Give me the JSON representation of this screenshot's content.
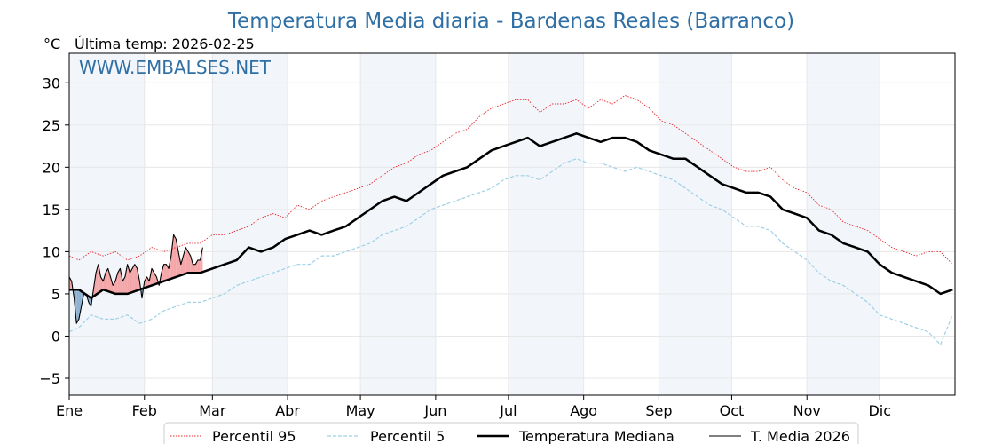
{
  "page": {
    "title": "Temperatura Media diaria - Bardenas Reales (Barranco)",
    "unit": "°C",
    "last_temp": "Última temp: 2026-02-25",
    "watermark": "WWW.EMBALSES.NET"
  },
  "colors": {
    "p95": "#e8262a",
    "p5": "#9ed0e6",
    "median": "#000000",
    "current": "#000000",
    "warm_fill": "#f4a6a8",
    "cold_fill": "#8db2d1",
    "band": "#f2f6fb",
    "grid": "#e7e7e7"
  },
  "chart_data": {
    "type": "line",
    "title": "Temperatura Media diaria - Bardenas Reales (Barranco)",
    "ylabel": "°C",
    "xlim": [
      1,
      366
    ],
    "ylim": [
      -7,
      33.5
    ],
    "yticks": [
      -5,
      0,
      5,
      10,
      15,
      20,
      25,
      30
    ],
    "ytick_labels": [
      "−5",
      "0",
      "5",
      "10",
      "15",
      "20",
      "25",
      "30"
    ],
    "month_labels": [
      "Ene",
      "Feb",
      "Mar",
      "Abr",
      "May",
      "Jun",
      "Jul",
      "Ago",
      "Sep",
      "Oct",
      "Nov",
      "Dic"
    ],
    "month_starts": [
      1,
      32,
      60,
      91,
      121,
      152,
      182,
      213,
      244,
      274,
      305,
      335
    ],
    "grid": true,
    "legend_position": "bottom",
    "series": [
      {
        "name": "Percentil 95",
        "style": "dotted-red-thin",
        "x": [
          1,
          5,
          10,
          15,
          20,
          25,
          30,
          35,
          40,
          45,
          50,
          55,
          60,
          65,
          70,
          75,
          80,
          85,
          90,
          95,
          100,
          105,
          110,
          115,
          120,
          125,
          130,
          135,
          140,
          145,
          150,
          155,
          160,
          165,
          170,
          175,
          180,
          185,
          190,
          195,
          200,
          205,
          210,
          215,
          220,
          225,
          230,
          235,
          240,
          245,
          250,
          255,
          260,
          265,
          270,
          275,
          280,
          285,
          290,
          295,
          300,
          305,
          310,
          315,
          320,
          325,
          330,
          335,
          340,
          345,
          350,
          355,
          360,
          365
        ],
        "values": [
          9.5,
          9.0,
          10.0,
          9.5,
          10.0,
          9.0,
          9.5,
          10.5,
          10.0,
          10.5,
          11.0,
          11.0,
          12.0,
          12.0,
          12.5,
          13.0,
          14.0,
          14.5,
          14.0,
          15.5,
          15.0,
          16.0,
          16.5,
          17.0,
          17.5,
          18.0,
          19.0,
          20.0,
          20.5,
          21.5,
          22.0,
          23.0,
          24.0,
          24.5,
          26.0,
          27.0,
          27.5,
          28.0,
          28.0,
          26.5,
          27.5,
          27.5,
          28.0,
          27.0,
          28.0,
          27.5,
          28.5,
          28.0,
          27.0,
          25.5,
          25.0,
          24.0,
          23.0,
          22.0,
          21.0,
          20.0,
          19.5,
          19.5,
          20.0,
          18.5,
          17.5,
          17.0,
          15.5,
          15.0,
          13.5,
          13.0,
          12.5,
          11.5,
          10.5,
          10.0,
          9.5,
          10.0,
          10.0,
          8.5
        ]
      },
      {
        "name": "Percentil 5",
        "style": "dashed-lightblue-thin",
        "x": [
          1,
          5,
          10,
          15,
          20,
          25,
          30,
          35,
          40,
          45,
          50,
          55,
          60,
          65,
          70,
          75,
          80,
          85,
          90,
          95,
          100,
          105,
          110,
          115,
          120,
          125,
          130,
          135,
          140,
          145,
          150,
          155,
          160,
          165,
          170,
          175,
          180,
          185,
          190,
          195,
          200,
          205,
          210,
          215,
          220,
          225,
          230,
          235,
          240,
          245,
          250,
          255,
          260,
          265,
          270,
          275,
          280,
          285,
          290,
          295,
          300,
          305,
          310,
          315,
          320,
          325,
          330,
          335,
          340,
          345,
          350,
          355,
          360,
          365
        ],
        "values": [
          0.5,
          1.0,
          2.5,
          2.0,
          2.0,
          2.5,
          1.5,
          2.0,
          3.0,
          3.5,
          4.0,
          4.0,
          4.5,
          5.0,
          6.0,
          6.5,
          7.0,
          7.5,
          8.0,
          8.5,
          8.5,
          9.5,
          9.5,
          10.0,
          10.5,
          11.0,
          12.0,
          12.5,
          13.0,
          14.0,
          15.0,
          15.5,
          16.0,
          16.5,
          17.0,
          17.5,
          18.5,
          19.0,
          19.0,
          18.5,
          19.5,
          20.5,
          21.0,
          20.5,
          20.5,
          20.0,
          19.5,
          20.0,
          19.5,
          19.0,
          18.5,
          17.5,
          16.5,
          15.5,
          15.0,
          14.0,
          13.0,
          13.0,
          12.5,
          11.0,
          10.0,
          9.0,
          7.5,
          6.5,
          6.0,
          5.0,
          4.0,
          2.5,
          2.0,
          1.5,
          1.0,
          0.5,
          -1.0,
          2.5
        ]
      },
      {
        "name": "Temperatura Mediana",
        "style": "solid-black-thick",
        "x": [
          1,
          5,
          10,
          15,
          20,
          25,
          30,
          35,
          40,
          45,
          50,
          55,
          60,
          65,
          70,
          75,
          80,
          85,
          90,
          95,
          100,
          105,
          110,
          115,
          120,
          125,
          130,
          135,
          140,
          145,
          150,
          155,
          160,
          165,
          170,
          175,
          180,
          185,
          190,
          195,
          200,
          205,
          210,
          215,
          220,
          225,
          230,
          235,
          240,
          245,
          250,
          255,
          260,
          265,
          270,
          275,
          280,
          285,
          290,
          295,
          300,
          305,
          310,
          315,
          320,
          325,
          330,
          335,
          340,
          345,
          350,
          355,
          360,
          365
        ],
        "values": [
          5.5,
          5.5,
          4.5,
          5.5,
          5.0,
          5.0,
          5.5,
          6.0,
          6.5,
          7.0,
          7.5,
          7.5,
          8.0,
          8.5,
          9.0,
          10.5,
          10.0,
          10.5,
          11.5,
          12.0,
          12.5,
          12.0,
          12.5,
          13.0,
          14.0,
          15.0,
          16.0,
          16.5,
          16.0,
          17.0,
          18.0,
          19.0,
          19.5,
          20.0,
          21.0,
          22.0,
          22.5,
          23.0,
          23.5,
          22.5,
          23.0,
          23.5,
          24.0,
          23.5,
          23.0,
          23.5,
          23.5,
          23.0,
          22.0,
          21.5,
          21.0,
          21.0,
          20.0,
          19.0,
          18.0,
          17.5,
          17.0,
          17.0,
          16.5,
          15.0,
          14.5,
          14.0,
          12.5,
          12.0,
          11.0,
          10.5,
          10.0,
          8.5,
          7.5,
          7.0,
          6.5,
          6.0,
          5.0,
          5.5
        ]
      },
      {
        "name": "T. Media 2026",
        "style": "solid-black-thin",
        "x": [
          1,
          2,
          3,
          4,
          5,
          6,
          7,
          8,
          9,
          10,
          11,
          12,
          13,
          14,
          15,
          16,
          17,
          18,
          19,
          20,
          21,
          22,
          23,
          24,
          25,
          26,
          27,
          28,
          29,
          30,
          31,
          32,
          33,
          34,
          35,
          36,
          37,
          38,
          39,
          40,
          41,
          42,
          43,
          44,
          45,
          46,
          47,
          48,
          49,
          50,
          51,
          52,
          53,
          54,
          55,
          56
        ],
        "values": [
          7.0,
          6.5,
          4.5,
          1.5,
          2.0,
          3.5,
          5.0,
          5.0,
          4.0,
          3.5,
          5.5,
          7.5,
          8.5,
          7.0,
          6.5,
          7.5,
          8.0,
          7.0,
          6.0,
          6.5,
          7.5,
          8.0,
          6.5,
          7.0,
          8.5,
          7.5,
          8.0,
          8.5,
          8.0,
          6.5,
          4.5,
          6.5,
          7.0,
          6.5,
          8.0,
          7.5,
          7.0,
          6.0,
          7.5,
          8.5,
          8.5,
          8.0,
          9.5,
          12.0,
          11.5,
          10.0,
          8.5,
          9.5,
          10.5,
          10.0,
          9.5,
          8.5,
          8.5,
          9.0,
          9.0,
          10.5
        ]
      }
    ]
  },
  "legend": {
    "items": [
      {
        "label": "Percentil 95",
        "style": "dotted-red-thin"
      },
      {
        "label": "Percentil 5",
        "style": "dashed-lightblue-thin"
      },
      {
        "label": "Temperatura Mediana",
        "style": "solid-black-thick"
      },
      {
        "label": "T. Media 2026",
        "style": "solid-black-thin"
      }
    ]
  }
}
